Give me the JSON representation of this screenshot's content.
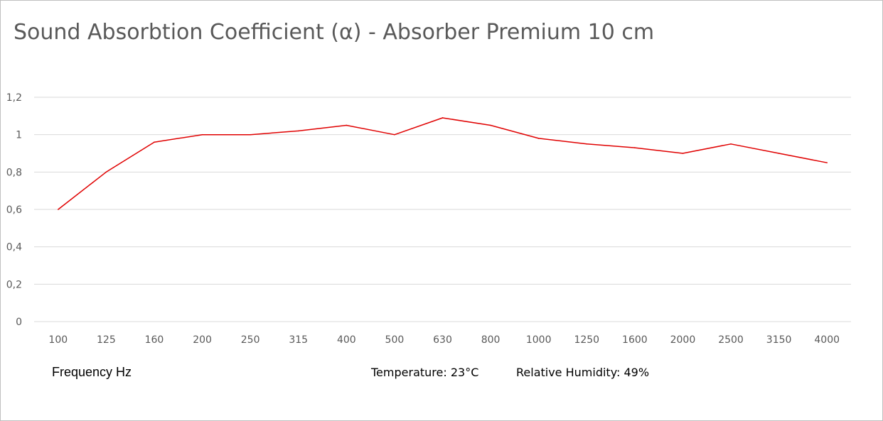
{
  "chart_data": {
    "type": "line",
    "title": "Sound Absorbtion Coefficient (α) - Absorber Premium 10 cm",
    "xlabel": "Frequency Hz",
    "ylabel": "",
    "categories": [
      "100",
      "125",
      "160",
      "200",
      "250",
      "315",
      "400",
      "500",
      "630",
      "800",
      "1000",
      "1250",
      "1600",
      "2000",
      "2500",
      "3150",
      "4000"
    ],
    "series": [
      {
        "values": [
          0.6,
          0.8,
          0.96,
          1.0,
          1.0,
          1.02,
          1.05,
          1.0,
          1.09,
          1.05,
          0.98,
          0.95,
          0.93,
          0.9,
          0.95,
          0.9,
          0.85
        ],
        "color": "#e00000"
      }
    ],
    "ylim": [
      0,
      1.2
    ],
    "yticks": [
      0,
      0.2,
      0.4,
      0.6,
      0.8,
      1,
      1.2
    ],
    "ytick_labels": [
      "0",
      "0,2",
      "0,4",
      "0,6",
      "0,8",
      "1",
      "1,2"
    ],
    "grid": true,
    "gridline_color": "#d9d9d9",
    "legend": "none",
    "annotations": [
      "Temperature: 23°C",
      "Relative Humidity: 49%"
    ]
  }
}
